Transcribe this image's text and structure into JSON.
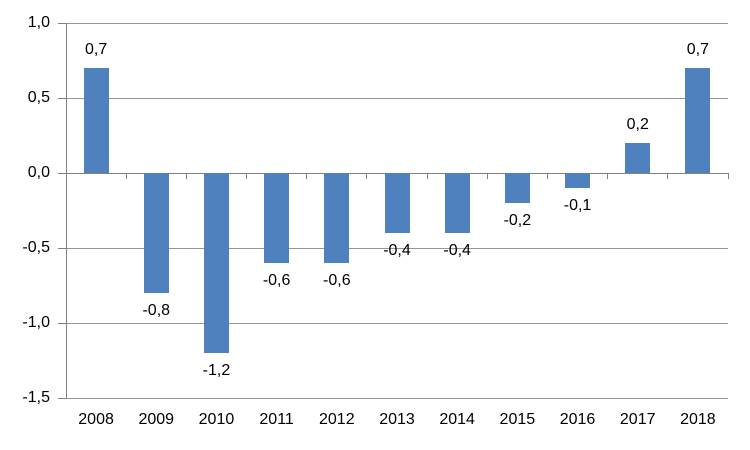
{
  "chart_data": {
    "type": "bar",
    "title": "",
    "xlabel": "",
    "ylabel": "",
    "categories": [
      "2008",
      "2009",
      "2010",
      "2011",
      "2012",
      "2013",
      "2014",
      "2015",
      "2016",
      "2017",
      "2018"
    ],
    "values": [
      0.7,
      -0.8,
      -1.2,
      -0.6,
      -0.6,
      -0.4,
      -0.4,
      -0.2,
      -0.1,
      0.2,
      0.7
    ],
    "data_labels": [
      "0,7",
      "-0,8",
      "-1,2",
      "-0,6",
      "-0,6",
      "-0,4",
      "-0,4",
      "-0,2",
      "-0,1",
      "0,2",
      "0,7"
    ],
    "y_ticks": [
      {
        "value": 1.0,
        "label": "1,0"
      },
      {
        "value": 0.5,
        "label": "0,5"
      },
      {
        "value": 0.0,
        "label": "0,0"
      },
      {
        "value": -0.5,
        "label": "-0,5"
      },
      {
        "value": -1.0,
        "label": "-1,0"
      },
      {
        "value": -1.5,
        "label": "-1,5"
      }
    ],
    "ylim": [
      -1.5,
      1.0
    ],
    "grid": true,
    "legend": false,
    "decimal_separator": ",",
    "colors": {
      "bar": "#4E81BD",
      "gridline": "#969696",
      "axis": "#808080",
      "text": "#000000",
      "background": "#FFFFFF"
    }
  }
}
